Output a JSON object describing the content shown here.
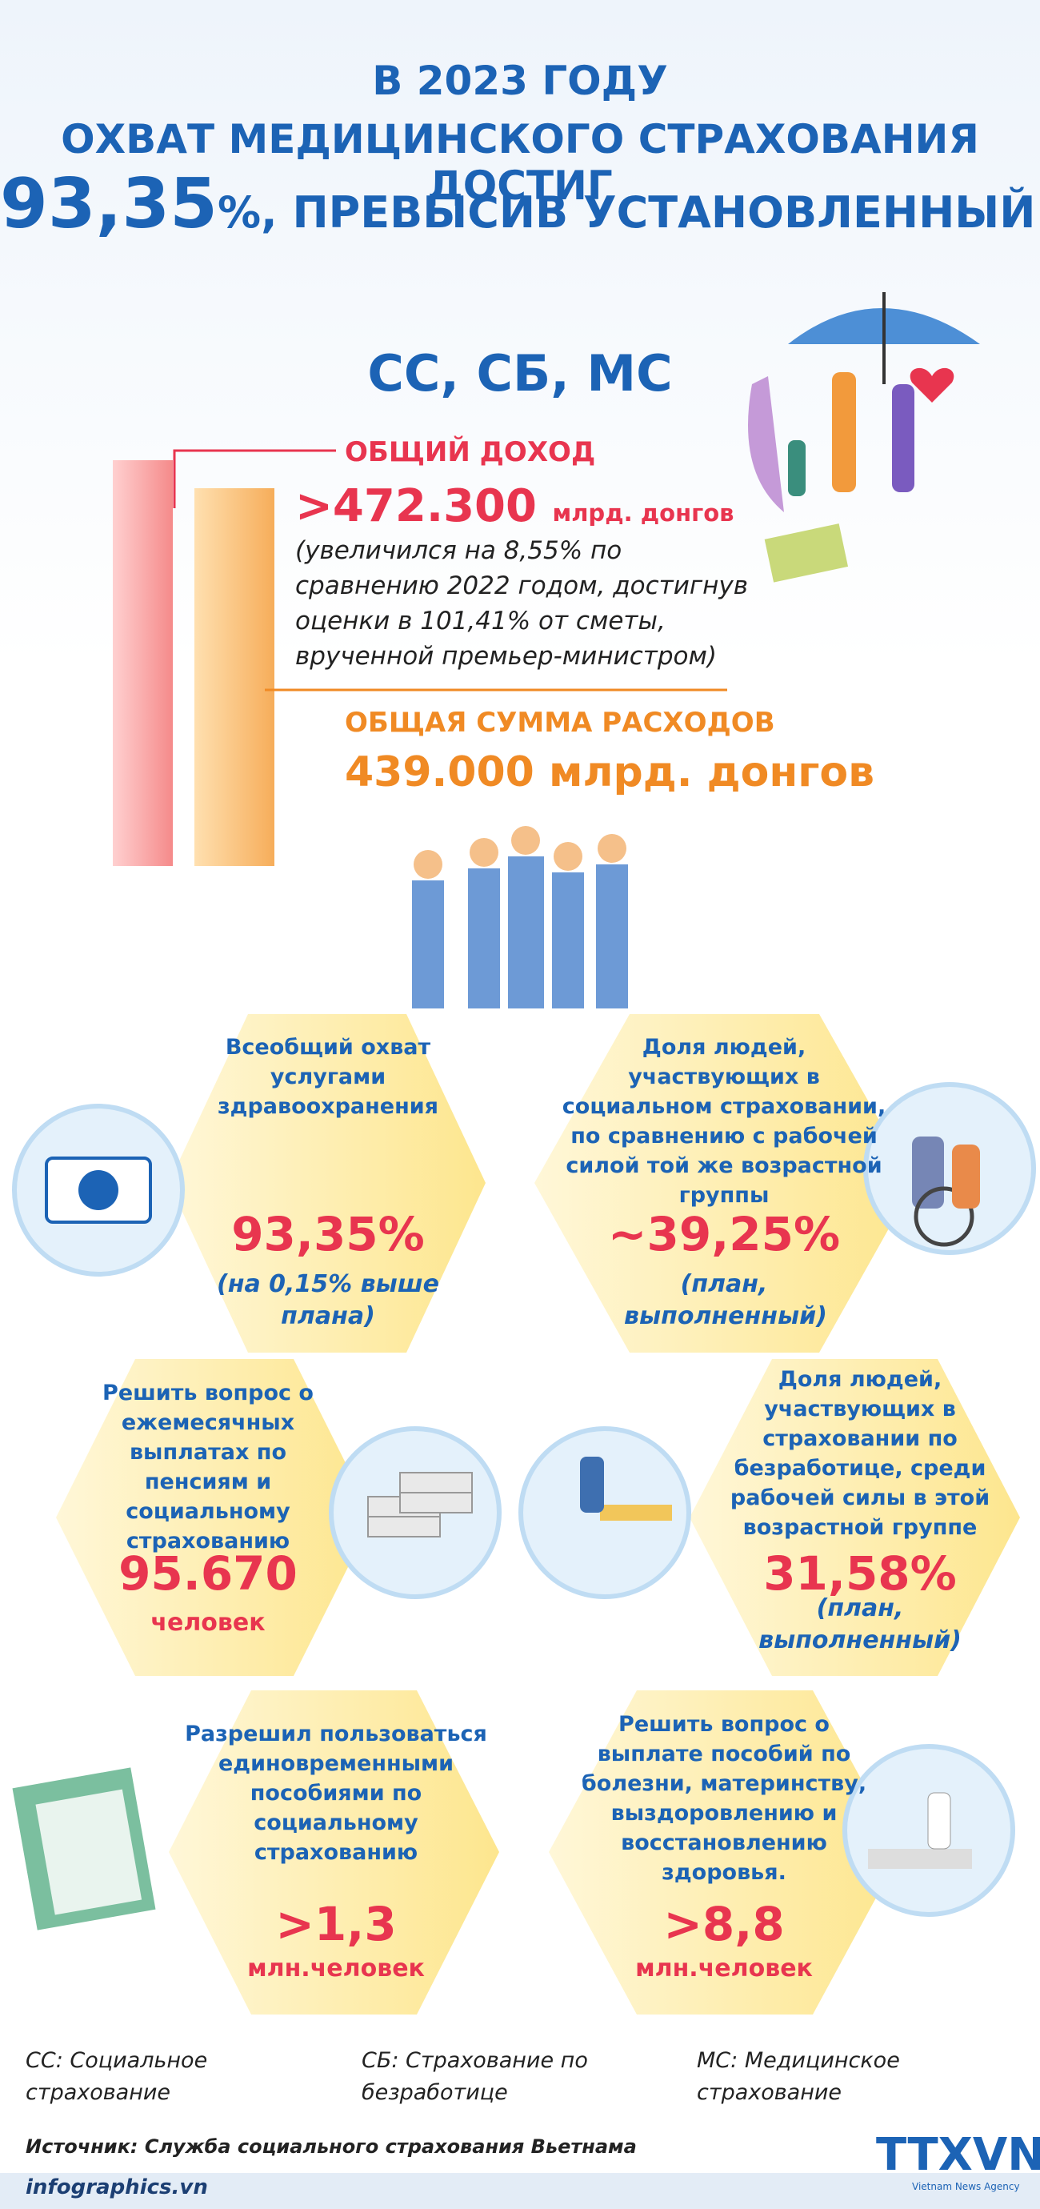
{
  "header": {
    "line1": "В 2023 ГОДУ",
    "line2": "ОХВАТ МЕДИЦИНСКОГО СТРАХОВАНИЯ ДОСТИГ",
    "line3_number": "93,35",
    "line3_rest": "%, ПРЕВЫСИВ УСТАНОВЛЕННЫЙ ПЛАН."
  },
  "subtitle": "СС, СБ, МС",
  "income": {
    "label": "ОБЩИЙ ДОХОД",
    "value": ">472.300",
    "unit": "млрд. донгов",
    "note": "(увеличился на 8,55% по сравнению 2022 годом, достигнув оценки в 101,41% от сметы, врученной премьер-министром)"
  },
  "expense": {
    "label": "ОБЩАЯ СУММА РАСХОДОВ",
    "value": "439.000 млрд. донгов"
  },
  "cards": [
    {
      "title": "Всеобщий охват услугами здравоохранения",
      "value": "93,35%",
      "note": "(на 0,15% выше плана)"
    },
    {
      "title": "Доля людей, участвующих в социальном страховании, по сравнению с рабочей силой той же возрастной группы",
      "value": "~39,25%",
      "note": "(план, выполненный)"
    },
    {
      "title": "Решить вопрос о ежемесячных выплатах по пенсиям и социальному страхованию",
      "value": "95.670",
      "note": "человек"
    },
    {
      "title": "Доля людей, участвующих в страховании по безработице, среди рабочей силы в этой возрастной группе",
      "value": "31,58%",
      "note": "(план, выполненный)"
    },
    {
      "title": "Разрешил пользоваться единовременными пособиями по социальному страхованию",
      "value": ">1,3",
      "note": "млн.человек"
    },
    {
      "title": "Решить вопрос о выплате пособий по болезни, материнству, выздоровлению и восстановлению здоровья.",
      "value": ">8,8",
      "note": "млн.человек"
    }
  ],
  "footnotes": [
    "СС: Социальное страхование",
    "СБ: Страхование по безработице",
    "МС: Медицинское страхование"
  ],
  "source": "Источник: Служба социального страхования Вьетнама",
  "site": "infographics.vn",
  "logo": "TTXVN",
  "logo_sub": "Vietnam News Agency"
}
